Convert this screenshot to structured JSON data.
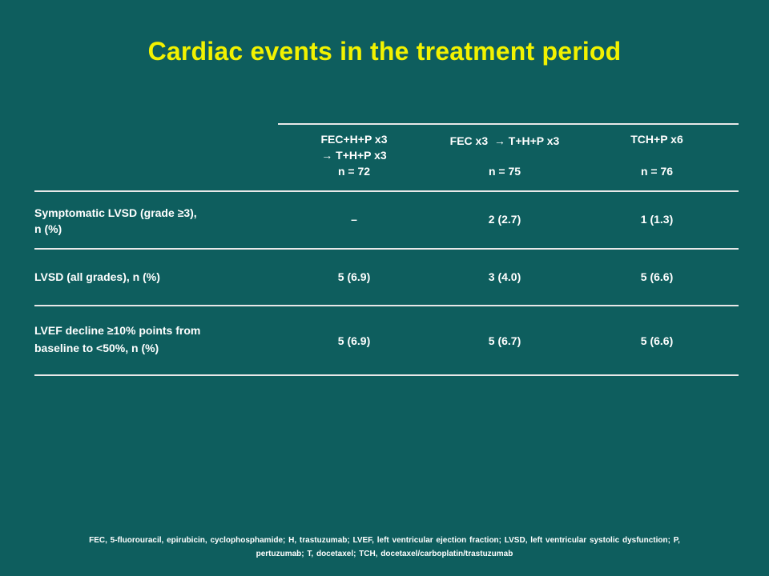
{
  "slide": {
    "title": "Cardiac events in the treatment period"
  },
  "table": {
    "columns": [
      {
        "line1": "FEC+H+P x3",
        "line2": "→ T+H+P x3",
        "n": "n = 72"
      },
      {
        "line1": "FEC x3  → T+H+P x3",
        "line2": "",
        "n": "n = 75"
      },
      {
        "line1": "TCH+P x6",
        "line2": "",
        "n": "n = 76"
      }
    ],
    "rows": [
      {
        "label_line1": "Symptomatic LVSD (grade ≥3),",
        "label_line2": "n (%)",
        "values": [
          "–",
          "2 (2.7)",
          "1 (1.3)"
        ]
      },
      {
        "label_line1": "LVSD (all grades), n (%)",
        "label_line2": "",
        "values": [
          "5 (6.9)",
          "3 (4.0)",
          "5 (6.6)"
        ]
      },
      {
        "label_line1": "LVEF decline ≥10% points from",
        "label_line2": "baseline to <50%, n (%)",
        "values": [
          "5 (6.9)",
          "5 (6.7)",
          "5 (6.6)"
        ]
      }
    ]
  },
  "footnote": {
    "line1": "FEC, 5-fluorouracil, epirubicin, cyclophosphamide; H, trastuzumab; LVEF, left ventricular ejection fraction; LVSD, left ventricular systolic dysfunction; P,",
    "line2": "pertuzumab; T, docetaxel; TCH, docetaxel/carboplatin/trastuzumab"
  },
  "colors": {
    "background": "#0e5e5e",
    "title": "#f2f200",
    "text": "#ffffff",
    "rule": "#e8e8e8"
  }
}
